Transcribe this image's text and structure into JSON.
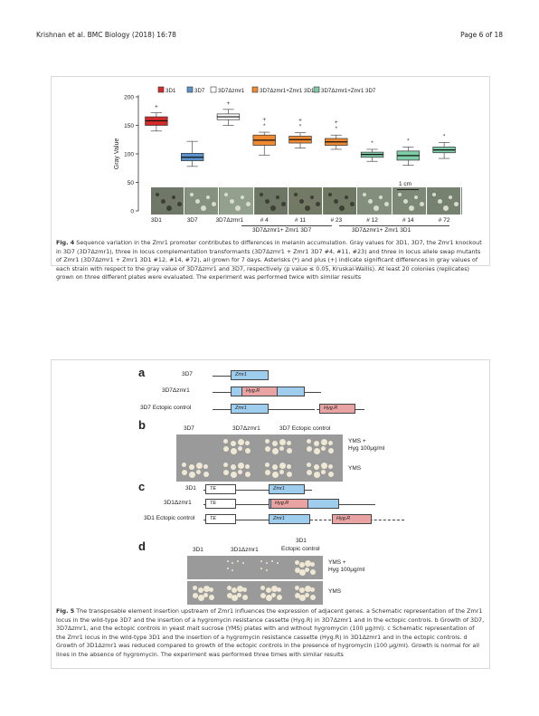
{
  "header": {
    "left": "Krishnan et al. BMC Biology (2018) 16:78",
    "right": "Page 6 of 18"
  },
  "fig4": {
    "legend": [
      "3D1",
      "3D7",
      "3D7Δzmr1",
      "3D7Δzmr1+Zmr1 3D1",
      "3D7Δzmr1+Zmr1 3D7"
    ],
    "ylabel": "Gray Value",
    "yticks": [
      "200",
      "150",
      "100",
      "50",
      "0"
    ],
    "scale": "1 cm",
    "xlabels": [
      "3D1",
      "3D7",
      "3D7Δzmr1",
      "# 4",
      "# 11",
      "# 23",
      "# 12",
      "# 14",
      "# 72"
    ],
    "group1": "3D7Δzmr1+ Zmr1 3D7",
    "group2": "3D7Δzmr1+ Zmr1 3D1",
    "caption_label": "Fig. 4",
    "caption": "Sequence variation in the Zmr1 promoter contributes to differences in melanin accumulation. Gray values for 3D1, 3D7, the Zmr1 knockout in 3D7 (3D7Δzmr1), three in locus complementation transformants (3D7Δzmr1 + Zmr1 3D7 #4, #11, #23) and three in locus allele swap mutants of Zmr1 (3D7Δzmr1 + Zmr1 3D1 #12, #14, #72), all grown for 7 days. Asterisks (*) and plus (+) indicate significant differences in gray values of each strain with respect to the gray value of 3D7Δzmr1 and 3D7, respectively (p value ≤ 0.05, Kruskal-Wallis). At least 20 colonies (replicates) grown on three different plates were evaluated. The experiment was performed twice with similar results"
  },
  "chart_data": {
    "type": "box",
    "ylabel": "Gray Value",
    "ylim": [
      0,
      200
    ],
    "categories": [
      "3D1",
      "3D7",
      "3D7Δzmr1",
      "# 4",
      "# 11",
      "# 23",
      "# 12",
      "# 14",
      "# 72"
    ],
    "colors": [
      "#d42a2a",
      "#5b93cc",
      "#ffffff",
      "#ef8a33",
      "#ef8a33",
      "#ef8a33",
      "#7fcca8",
      "#7fcca8",
      "#7fcca8"
    ],
    "series": [
      {
        "q1": 150,
        "median": 158,
        "q3": 165,
        "min": 140,
        "max": 172,
        "marks": "+"
      },
      {
        "q1": 88,
        "median": 94,
        "q3": 101,
        "min": 78,
        "max": 122,
        "marks": ""
      },
      {
        "q1": 160,
        "median": 165,
        "q3": 170,
        "min": 150,
        "max": 178,
        "marks": "+"
      },
      {
        "q1": 115,
        "median": 124,
        "q3": 133,
        "min": 98,
        "max": 138,
        "marks": "+*"
      },
      {
        "q1": 119,
        "median": 125,
        "q3": 131,
        "min": 110,
        "max": 137,
        "marks": "+*"
      },
      {
        "q1": 115,
        "median": 121,
        "q3": 127,
        "min": 108,
        "max": 133,
        "marks": "+*"
      },
      {
        "q1": 94,
        "median": 99,
        "q3": 103,
        "min": 87,
        "max": 108,
        "marks": "*"
      },
      {
        "q1": 89,
        "median": 97,
        "q3": 105,
        "min": 80,
        "max": 112,
        "marks": "*"
      },
      {
        "q1": 102,
        "median": 107,
        "q3": 112,
        "min": 92,
        "max": 120,
        "marks": "*"
      }
    ]
  },
  "fig5": {
    "a": {
      "label": "a",
      "rows": [
        "3D7",
        "3D7Δzmr1",
        "3D7 Ectopic control"
      ],
      "zmr1": "Zmr1",
      "hyg": "Hyg.R"
    },
    "b": {
      "label": "b",
      "cols": [
        "3D7",
        "3D7Δzmr1",
        "3D7 Ectopic control"
      ],
      "row1": "YMS +",
      "row1b": "Hyg 100μg/ml",
      "row2": "YMS"
    },
    "c": {
      "label": "c",
      "rows": [
        "3D1",
        "3D1Δzmr1",
        "3D1 Ectopic control"
      ],
      "te": "TE",
      "zmr1": "Zmr1",
      "hyg": "Hyg.R"
    },
    "d": {
      "label": "d",
      "cols": [
        "3D1",
        "3D1Δzmr1",
        "3D1",
        "Ectopic control"
      ],
      "row1": "YMS +",
      "row1b": "Hyg 100μg/ml",
      "row2": "YMS"
    },
    "caption_label": "Fig. 5",
    "caption": "The transposable element insertion upstream of Zmr1 influences the expression of adjacent genes. a Schematic representation of the Zmr1 locus in the wild-type 3D7 and the insertion of a hygromycin resistance cassette (Hyg.R) in 3D7Δzmr1 and in the ectopic controls. b Growth of 3D7, 3D7Δzmr1, and the ectopic controls in yeast malt sucrose (YMS) plates with and without hygromycin (100 μg/ml). c Schematic representation of the Zmr1 locus in the wild-type 3D1 and the insertion of a hygromycin resistance cassette (Hyg.R) in 3D1Δzmr1 and in the ectopic controls. d Growth of 3D1Δzmr1 was reduced compared to growth of the ectopic controls in the presence of hygromycin (100 μg/ml). Growth is normal for all lines in the absence of hygromycin. The experiment was performed three times with similar results"
  }
}
